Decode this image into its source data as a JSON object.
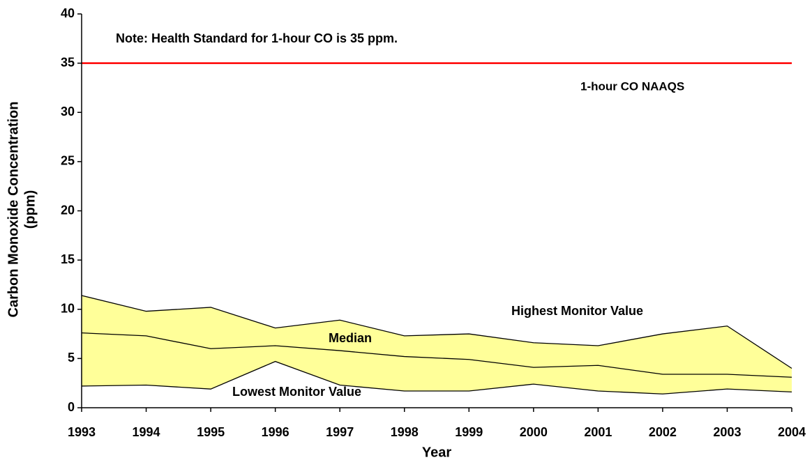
{
  "chart_data": {
    "type": "band",
    "xlabel": "Year",
    "ylabel": [
      "Carbon Monoxide Concentration",
      "(ppm)"
    ],
    "x": [
      1993,
      1994,
      1995,
      1996,
      1997,
      1998,
      1999,
      2000,
      2001,
      2002,
      2003,
      2004
    ],
    "xlim": [
      1993,
      2004
    ],
    "xticks": [
      1993,
      1994,
      1995,
      1996,
      1997,
      1998,
      1999,
      2000,
      2001,
      2002,
      2003,
      2004
    ],
    "ylim": [
      0,
      40
    ],
    "yticks": [
      0,
      5,
      10,
      15,
      20,
      25,
      30,
      35,
      40
    ],
    "fill_color": "#ffff99",
    "series": [
      {
        "name": "Highest Monitor Value",
        "color": "#000000",
        "values": [
          11.4,
          9.8,
          10.2,
          8.1,
          8.9,
          7.3,
          7.5,
          6.6,
          6.3,
          7.5,
          8.3,
          4.0
        ]
      },
      {
        "name": "Median",
        "color": "#000000",
        "values": [
          7.6,
          7.3,
          6.0,
          6.3,
          5.8,
          5.2,
          4.9,
          4.1,
          4.3,
          3.4,
          3.4,
          3.1
        ]
      },
      {
        "name": "Lowest Monitor Value",
        "color": "#000000",
        "values": [
          2.2,
          2.3,
          1.9,
          4.7,
          2.3,
          1.7,
          1.7,
          2.4,
          1.7,
          1.4,
          1.9,
          1.6
        ]
      }
    ],
    "reference_line": {
      "name": "1-hour CO NAAQS",
      "value": 35,
      "color": "#ff0000"
    },
    "note": "Note: Health Standard for 1-hour CO is 35 ppm."
  }
}
